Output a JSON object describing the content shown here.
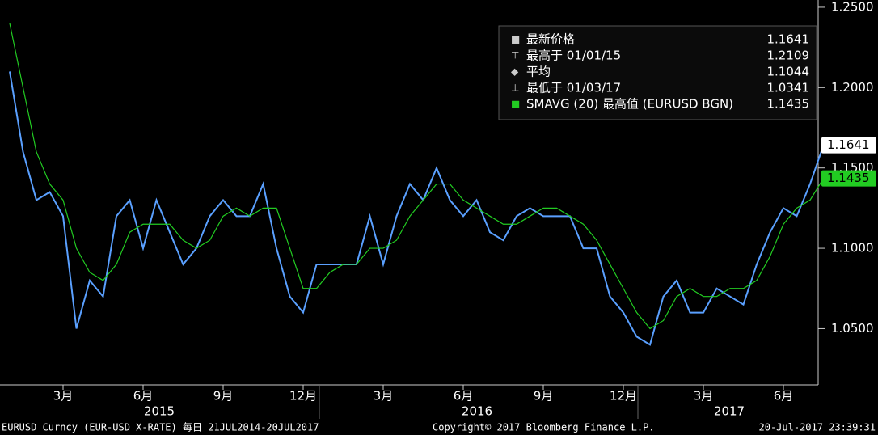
{
  "chart_data": {
    "type": "line",
    "categories": [
      null,
      null,
      null,
      null,
      "3月",
      null,
      null,
      null,
      null,
      null,
      "6月",
      null,
      null,
      null,
      null,
      null,
      "9月",
      null,
      null,
      null,
      null,
      null,
      "12月",
      null,
      null,
      null,
      null,
      null,
      "3月",
      null,
      null,
      null,
      null,
      null,
      "6月",
      null,
      null,
      null,
      null,
      null,
      "9月",
      null,
      null,
      null,
      null,
      null,
      "12月",
      null,
      null,
      null,
      null,
      null,
      "3月",
      null,
      null,
      null,
      null,
      null,
      "6月",
      null,
      null,
      null
    ],
    "years": [
      "2015",
      "2016",
      "2017"
    ],
    "series": [
      {
        "name": "最新价格",
        "color": "#5aa0ff",
        "values": [
          1.21,
          1.16,
          1.13,
          1.135,
          1.12,
          1.05,
          1.08,
          1.07,
          1.12,
          1.13,
          1.1,
          1.13,
          1.11,
          1.09,
          1.1,
          1.12,
          1.13,
          1.12,
          1.12,
          1.14,
          1.1,
          1.07,
          1.06,
          1.09,
          1.09,
          1.09,
          1.09,
          1.12,
          1.09,
          1.12,
          1.14,
          1.13,
          1.15,
          1.13,
          1.12,
          1.13,
          1.11,
          1.105,
          1.12,
          1.125,
          1.12,
          1.12,
          1.12,
          1.1,
          1.1,
          1.07,
          1.06,
          1.045,
          1.04,
          1.07,
          1.08,
          1.06,
          1.06,
          1.075,
          1.07,
          1.065,
          1.09,
          1.11,
          1.125,
          1.12,
          1.14,
          1.1641
        ]
      },
      {
        "name": "SMAVG (20) 最高值 (EURUSD BGN)",
        "color": "#22cc22",
        "values": [
          1.24,
          1.2,
          1.16,
          1.14,
          1.13,
          1.1,
          1.085,
          1.08,
          1.09,
          1.11,
          1.115,
          1.115,
          1.115,
          1.105,
          1.1,
          1.105,
          1.12,
          1.125,
          1.12,
          1.125,
          1.125,
          1.1,
          1.075,
          1.075,
          1.085,
          1.09,
          1.09,
          1.1,
          1.1,
          1.105,
          1.12,
          1.13,
          1.14,
          1.14,
          1.13,
          1.125,
          1.12,
          1.115,
          1.115,
          1.12,
          1.125,
          1.125,
          1.12,
          1.115,
          1.105,
          1.09,
          1.075,
          1.06,
          1.05,
          1.055,
          1.07,
          1.075,
          1.07,
          1.07,
          1.075,
          1.075,
          1.08,
          1.095,
          1.115,
          1.125,
          1.13,
          1.1435
        ]
      }
    ],
    "legend": [
      {
        "label": "最新价格",
        "value": "1.1641"
      },
      {
        "label": "最高于 01/01/15",
        "value": "1.2109"
      },
      {
        "label": "平均",
        "value": "1.1044"
      },
      {
        "label": "最低于 01/03/17",
        "value": "1.0341"
      },
      {
        "label": "SMAVG (20) 最高值 (EURUSD BGN)",
        "value": "1.1435"
      }
    ],
    "ylim": [
      1.015,
      1.2545
    ],
    "yticks": [
      {
        "value": 1.05,
        "label": "1.0500"
      },
      {
        "value": 1.1,
        "label": "1.1000"
      },
      {
        "value": 1.15,
        "label": "1.1500"
      },
      {
        "value": 1.2,
        "label": "1.2000"
      },
      {
        "value": 1.25,
        "label": "1.2500"
      }
    ],
    "footer": {
      "left": "EURUSD Curncy (EUR-USD X-RATE)  每日 21JUL2014-20JUL2017",
      "center": "Copyright© 2017 Bloomberg Finance L.P.",
      "right": "20-Jul-2017 23:39:31"
    }
  }
}
